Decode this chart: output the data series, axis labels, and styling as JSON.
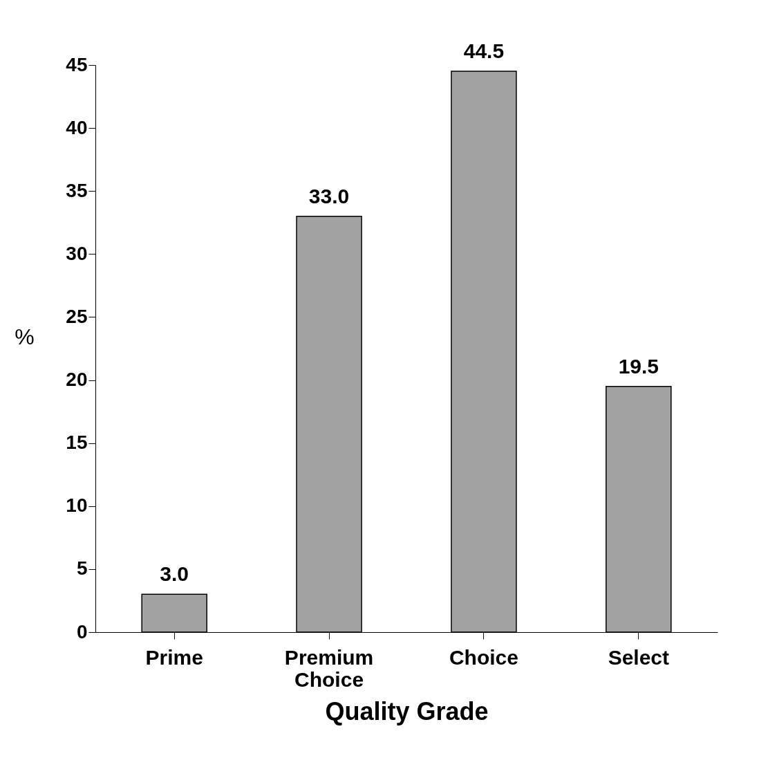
{
  "chart_data": {
    "type": "bar",
    "categories": [
      "Prime",
      "Premium Choice",
      "Choice",
      "Select"
    ],
    "values": [
      3.0,
      33.0,
      44.5,
      19.5
    ],
    "color": "#a3a3a3",
    "xlabel": "Quality Grade",
    "ylabel": "%",
    "ylim": [
      0,
      45
    ],
    "yticks": [
      0,
      5,
      10,
      15,
      20,
      25,
      30,
      35,
      40,
      45
    ],
    "value_labels": [
      "3.0",
      "33.0",
      "44.5",
      "19.5"
    ],
    "grid": false
  }
}
